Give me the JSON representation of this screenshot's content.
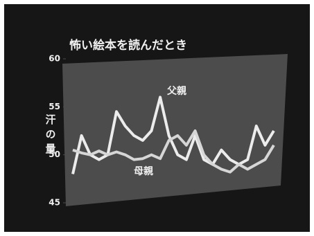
{
  "chart_data": {
    "type": "line",
    "title": "怖い絵本を読んだとき",
    "y_label": "汗の量",
    "categories": [
      null,
      null,
      null,
      null,
      null,
      null,
      null,
      null,
      null,
      null,
      null,
      null,
      null,
      null,
      null,
      null,
      null,
      null,
      null,
      null,
      null,
      null,
      null,
      null
    ],
    "series": [
      {
        "name": "父親",
        "color": "#ececec",
        "values": [
          48,
          52,
          50,
          49.5,
          50,
          54.5,
          53,
          52,
          51.5,
          52.5,
          56,
          52,
          50,
          49.5,
          52,
          49.5,
          49,
          50.5,
          49.5,
          49,
          49.5,
          53,
          51,
          52.5
        ]
      },
      {
        "name": "母親",
        "color": "#d6d6d6",
        "values": [
          50.5,
          50.2,
          50,
          50.4,
          50,
          50.3,
          50,
          49.5,
          49.6,
          50,
          49.6,
          51.5,
          52,
          51,
          52.5,
          50,
          49,
          48.5,
          48.2,
          49,
          48.5,
          49,
          49.5,
          51
        ]
      }
    ],
    "ylim": [
      45,
      60
    ],
    "yticks": [
      45,
      50,
      55,
      60
    ]
  }
}
